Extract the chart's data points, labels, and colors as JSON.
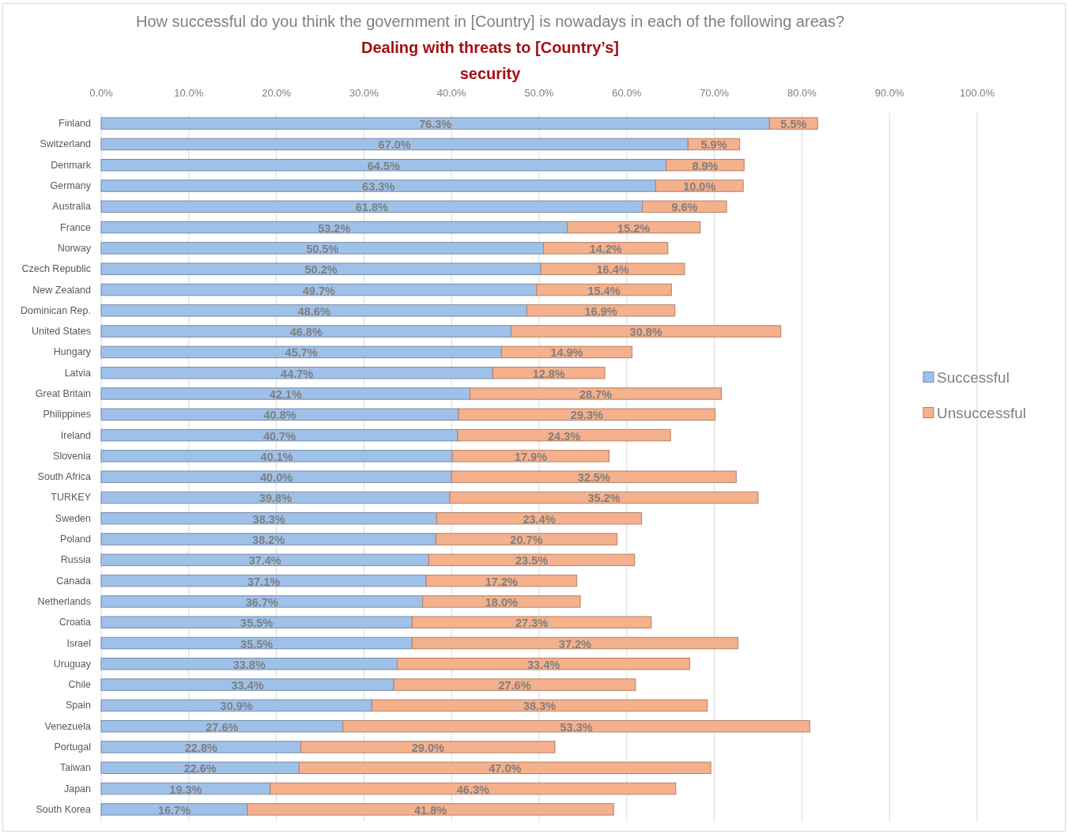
{
  "chart_data": {
    "type": "bar",
    "orientation": "horizontal",
    "stacked": true,
    "title": "How successful do you think the government in [Country] is nowadays in each of the following areas?",
    "subtitle": "Dealing with threats to [Country’s] security",
    "categories": [
      "Finland",
      "Switzerland",
      "Denmark",
      "Germany",
      "Australia",
      "France",
      "Norway",
      "Czech Republic",
      "New Zealand",
      "Dominican Rep.",
      "United States",
      "Hungary",
      "Latvia",
      "Great Britain",
      "Philippines",
      "Ireland",
      "Slovenia",
      "South Africa",
      "TURKEY",
      "Sweden",
      "Poland",
      "Russia",
      "Canada",
      "Netherlands",
      "Croatia",
      "Israel",
      "Uruguay",
      "Chile",
      "Spain",
      "Venezuela",
      "Portugal",
      "Taiwan",
      "Japan",
      "South Korea"
    ],
    "series": [
      {
        "name": "Successful",
        "color": "#9fc1e9",
        "values": [
          76.3,
          67.0,
          64.5,
          63.3,
          61.8,
          53.2,
          50.5,
          50.2,
          49.7,
          48.6,
          46.8,
          45.7,
          44.7,
          42.1,
          40.8,
          40.7,
          40.1,
          40.0,
          39.8,
          38.3,
          38.2,
          37.4,
          37.1,
          36.7,
          35.5,
          35.5,
          33.8,
          33.4,
          30.9,
          27.6,
          22.8,
          22.6,
          19.3,
          16.7
        ],
        "value_labels": [
          "76.3%",
          "67.0%",
          "64.5%",
          "63.3%",
          "61.8%",
          "53.2%",
          "50.5%",
          "50.2%",
          "49.7%",
          "48.6%",
          "46.8%",
          "45.7%",
          "44.7%",
          "42.1%",
          "40.8%",
          "40.7%",
          "40.1%",
          "40.0%",
          "39.8%",
          "38.3%",
          "38.2%",
          "37.4%",
          "37.1%",
          "36.7%",
          "35.5%",
          "35.5%",
          "33.8%",
          "33.4%",
          "30.9%",
          "27.6%",
          "22.8%",
          "22.6%",
          "19.3%",
          "16.7%"
        ]
      },
      {
        "name": "Unsuccessful",
        "color": "#f5b08c",
        "values": [
          5.5,
          5.9,
          8.9,
          10.0,
          9.6,
          15.2,
          14.2,
          16.4,
          15.4,
          16.9,
          30.8,
          14.9,
          12.8,
          28.7,
          29.3,
          24.3,
          17.9,
          32.5,
          35.2,
          23.4,
          20.7,
          23.5,
          17.2,
          18.0,
          27.3,
          37.2,
          33.4,
          27.6,
          38.3,
          53.3,
          29.0,
          47.0,
          46.3,
          41.8
        ],
        "value_labels": [
          "5.5%",
          "5.9%",
          "8.9%",
          "10.0%",
          "9.6%",
          "15.2%",
          "14.2%",
          "16.4%",
          "15.4%",
          "16.9%",
          "30.8%",
          "14.9%",
          "12.8%",
          "28.7%",
          "29.3%",
          "24.3%",
          "17.9%",
          "32.5%",
          "35.2%",
          "23.4%",
          "20.7%",
          "23.5%",
          "17.2%",
          "18.0%",
          "27.3%",
          "37.2%",
          "33.4%",
          "27.6%",
          "38.3%",
          "53.3%",
          "29.0%",
          "47.0%",
          "46.3%",
          "41.8%"
        ]
      }
    ],
    "xlim": [
      0,
      100
    ],
    "xticks": [
      {
        "value": 0,
        "label": "0.0%"
      },
      {
        "value": 10,
        "label": "10.0%"
      },
      {
        "value": 20,
        "label": "20.0%"
      },
      {
        "value": 30,
        "label": "30.0%"
      },
      {
        "value": 40,
        "label": "40.0%"
      },
      {
        "value": 50,
        "label": "50.0%"
      },
      {
        "value": 60,
        "label": "60.0%"
      },
      {
        "value": 70,
        "label": "70.0%"
      },
      {
        "value": 80,
        "label": "80.0%"
      },
      {
        "value": 90,
        "label": "90.0%"
      },
      {
        "value": 100,
        "label": "100.0%"
      }
    ],
    "grid": "x",
    "legend": "right"
  }
}
